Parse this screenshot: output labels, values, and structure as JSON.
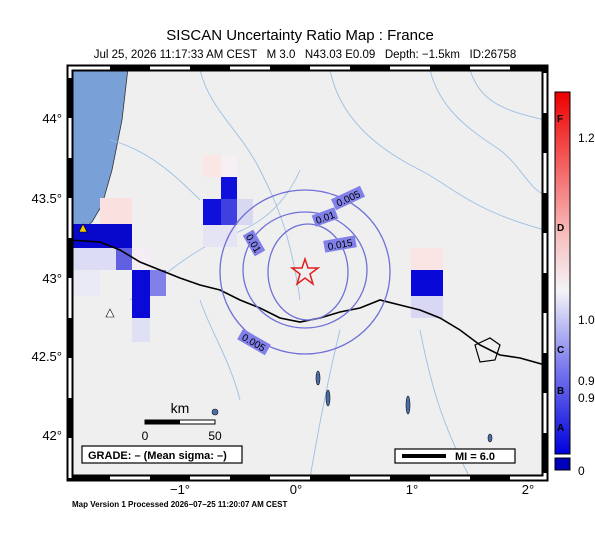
{
  "header": {
    "title": "SISCAN Uncertainty Ratio Map : France",
    "subtitle": "Jul 25, 2026 11:17:33 AM CEST   M 3.0   N43.03 E0.09   Depth: −1.5km   ID:26758"
  },
  "map": {
    "lat_labels": [
      "44°",
      "43.5°",
      "43°",
      "42.5°",
      "42°"
    ],
    "lon_labels": [
      "−1°",
      "0°",
      "1°",
      "2°"
    ],
    "contour_labels": [
      "0.005",
      "0.01",
      "0.015",
      "0.01",
      "0.005"
    ],
    "scale_bar": {
      "unit": "km",
      "start": "0",
      "end": "50"
    },
    "grade": "GRADE: – (Mean sigma: –)",
    "mi": "MI = 6.0"
  },
  "colorbar": {
    "labels": [
      "F",
      "1.2",
      "D",
      "1.0",
      "C",
      "B",
      "0.9",
      "0.9",
      "A",
      "0"
    ]
  },
  "footer": "Map Version 1 Processed 2026−07−25 11:20:07 AM CEST"
}
